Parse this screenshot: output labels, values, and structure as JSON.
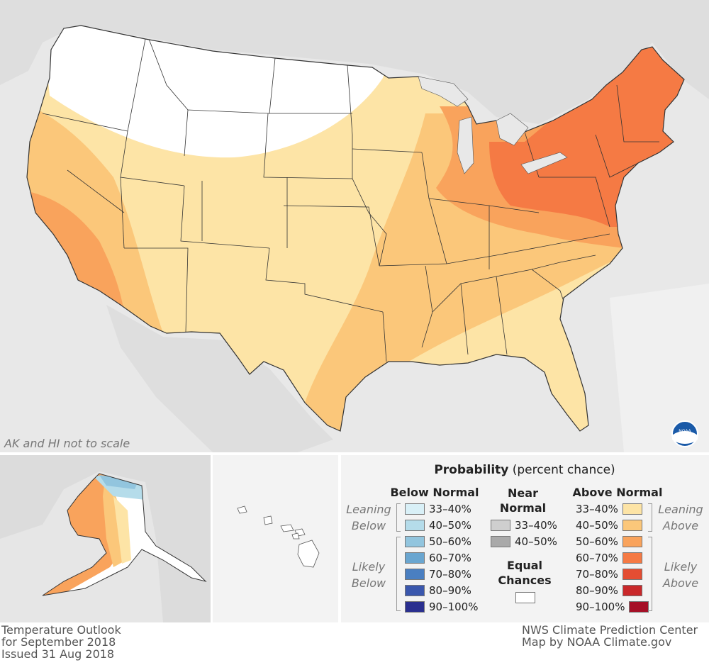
{
  "map_title": "Temperature Outlook",
  "map_subtitle": "for September 2018",
  "issued": "Issued 31 Aug 2018",
  "credit_1": "NWS Climate Prediction Center",
  "credit_2": "Map by NOAA Climate.gov",
  "scale_note": "AK and HI not to scale",
  "logo_text": "NOAA",
  "legend": {
    "title_bold": "Probability",
    "title_rest": " (percent chance)",
    "below": {
      "heading": "Below Normal",
      "leaning_label_1": "Leaning",
      "leaning_label_2": "Below",
      "likely_label_1": "Likely",
      "likely_label_2": "Below",
      "items": [
        {
          "label": "33–40%",
          "color": "#d9f0f7"
        },
        {
          "label": "40–50%",
          "color": "#b5dcea"
        },
        {
          "label": "50–60%",
          "color": "#92c5de"
        },
        {
          "label": "60–70%",
          "color": "#6aa6d0"
        },
        {
          "label": "70–80%",
          "color": "#4a7fc1"
        },
        {
          "label": "80–90%",
          "color": "#3a57ad"
        },
        {
          "label": "90–100%",
          "color": "#2a2f8f"
        }
      ]
    },
    "near": {
      "heading_1": "Near",
      "heading_2": "Normal",
      "items": [
        {
          "label": "33–40%",
          "color": "#cfcfcf"
        },
        {
          "label": "40–50%",
          "color": "#a9a9a9"
        }
      ],
      "equal_1": "Equal",
      "equal_2": "Chances",
      "equal_color": "#ffffff"
    },
    "above": {
      "heading": "Above Normal",
      "leaning_label_1": "Leaning",
      "leaning_label_2": "Above",
      "likely_label_1": "Likely",
      "likely_label_2": "Above",
      "items": [
        {
          "label": "33–40%",
          "color": "#fde4a6"
        },
        {
          "label": "40–50%",
          "color": "#fbc77a"
        },
        {
          "label": "50–60%",
          "color": "#f9a35c"
        },
        {
          "label": "60–70%",
          "color": "#f57a44"
        },
        {
          "label": "70–80%",
          "color": "#e44d32"
        },
        {
          "label": "80–90%",
          "color": "#c9282a"
        },
        {
          "label": "90–100%",
          "color": "#a50f26"
        }
      ]
    }
  },
  "colors": {
    "background": "#e6e6e6",
    "ocean": "#f3f3f3",
    "land_outside": "#dcdcdc",
    "border": "#333333",
    "noaa_blue": "#1a5aa8"
  }
}
